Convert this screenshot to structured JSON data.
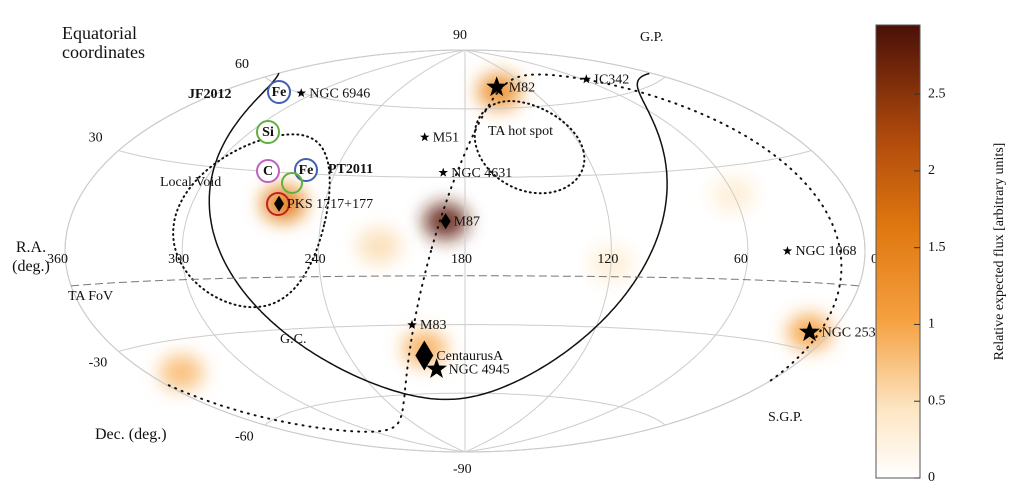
{
  "chart_data": {
    "type": "skymap",
    "title": "Equatorial coordinates",
    "xlabel": "R.A. (deg.)",
    "ylabel": "Dec. (deg.)",
    "xlim": [
      360,
      0
    ],
    "ylim": [
      -90,
      90
    ],
    "xticks": [
      360,
      300,
      240,
      180,
      120,
      60,
      0
    ],
    "yticks": [
      90,
      60,
      30,
      -30,
      -60,
      -90
    ],
    "grid": true,
    "sources": [
      {
        "name": "M82",
        "ra": 149,
        "dec": 70,
        "marker": "star"
      },
      {
        "name": "IC342",
        "ra": 57,
        "dec": 68,
        "marker": "small-star"
      },
      {
        "name": "NGC 6946",
        "ra": 309,
        "dec": 60,
        "marker": "small-star"
      },
      {
        "name": "M51",
        "ra": 202,
        "dec": 47,
        "marker": "small-star"
      },
      {
        "name": "NGC 4631",
        "ra": 190,
        "dec": 32,
        "marker": "small-star"
      },
      {
        "name": "M87",
        "ra": 188,
        "dec": 12,
        "marker": "diamond"
      },
      {
        "name": "PKS 1717+177",
        "ra": 260,
        "dec": 18,
        "marker": "diamond"
      },
      {
        "name": "NGC 1068",
        "ra": 41,
        "dec": 0,
        "marker": "small-star"
      },
      {
        "name": "M83",
        "ra": 204,
        "dec": -30,
        "marker": "small-star"
      },
      {
        "name": "CentaurusA",
        "ra": 201,
        "dec": -43,
        "marker": "big-diamond"
      },
      {
        "name": "NGC 4945",
        "ra": 196,
        "dec": -49,
        "marker": "star"
      },
      {
        "name": "NGC 253",
        "ra": 12,
        "dec": -25,
        "marker": "star"
      }
    ],
    "hotspots": [
      {
        "ra": 188,
        "dec": 12,
        "flux": 2.8
      },
      {
        "ra": 149,
        "dec": 68,
        "flux": 1.3
      },
      {
        "ra": 200,
        "dec": -40,
        "flux": 0.9
      },
      {
        "ra": 12,
        "dec": -25,
        "flux": 1.0
      },
      {
        "ra": 258,
        "dec": 18,
        "flux": 1.6
      },
      {
        "ra": 215,
        "dec": 2,
        "flux": 0.5
      },
      {
        "ra": 120,
        "dec": -5,
        "flux": 0.3
      },
      {
        "ra": 340,
        "dec": -40,
        "flux": 0.8
      },
      {
        "ra": 60,
        "dec": 20,
        "flux": 0.3
      }
    ],
    "annotations": [
      "JF2012",
      "PT2011",
      "Local Void",
      "TA hot spot",
      "G.P.",
      "G.C.",
      "S.G.P.",
      "TA FoV"
    ],
    "composition_markers": [
      {
        "label": "Fe",
        "color": "#4060b0"
      },
      {
        "label": "Si",
        "color": "#60b040"
      },
      {
        "label": "C",
        "color": "#c060c0"
      },
      {
        "label": "Fe",
        "color": "#4060b0"
      }
    ],
    "colorbar": {
      "label": "Relative expected flux [arbitrary units]",
      "clim": [
        0,
        2.95
      ],
      "ticks": [
        0,
        0.5,
        1,
        1.5,
        2,
        2.5
      ]
    }
  }
}
